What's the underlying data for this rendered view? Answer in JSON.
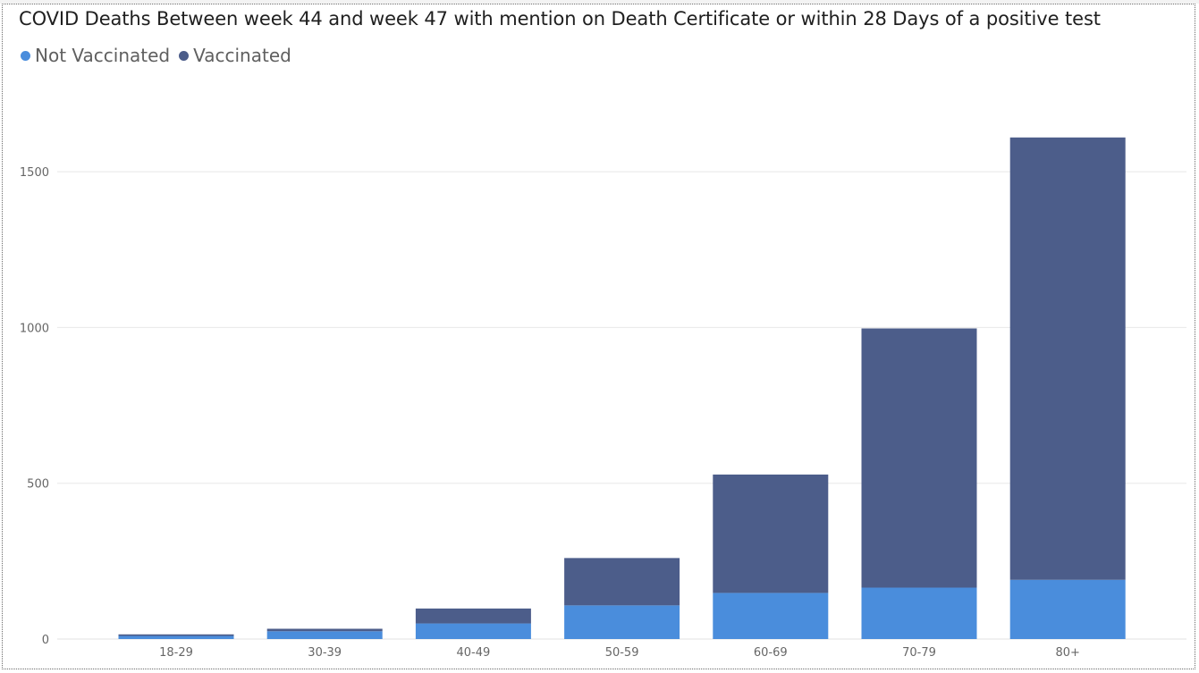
{
  "chart_data": {
    "type": "bar",
    "stacked": true,
    "title": "COVID Deaths Between week 44 and week 47 with mention on Death Certificate or within 28 Days of a positive test",
    "legend_position": "top-left",
    "categories": [
      "18-29",
      "30-39",
      "40-49",
      "50-59",
      "60-69",
      "70-79",
      "80+"
    ],
    "series": [
      {
        "name": "Not Vaccinated",
        "color": "#4a8ddc",
        "values": [
          10,
          25,
          50,
          108,
          148,
          165,
          190
        ]
      },
      {
        "name": "Vaccinated",
        "color": "#4c5d8a",
        "values": [
          5,
          8,
          48,
          152,
          380,
          832,
          1420
        ]
      }
    ],
    "ylim": [
      0,
      1750
    ],
    "yticks": [
      0,
      500,
      1000,
      1500
    ],
    "grid": true
  }
}
